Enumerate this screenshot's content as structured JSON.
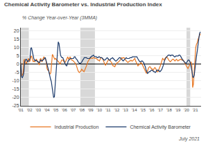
{
  "chart_data": {
    "type": "line",
    "title": "Chemical Activity Barometer vs. Industrial Production Index",
    "subtitle": "% Change Year-over-Year (3MMA)",
    "footer": "July 2021",
    "series": [
      {
        "name": "Industrial Production",
        "color": "#E87722",
        "x": [
          2001,
          2001.0883,
          2001.1767,
          2001.265,
          2001.3534,
          2001.4417,
          2001.53,
          2001.6184,
          2001.7067,
          2001.7951,
          2001.8834,
          2001.9717,
          2002.0601,
          2002.1484,
          2002.2368,
          2002.3251,
          2002.4134,
          2002.5018,
          2002.5901,
          2002.6785,
          2002.7668,
          2002.8552,
          2002.9435,
          2003.0318,
          2003.1202,
          2003.2085,
          2003.2969,
          2003.3852,
          2003.4735,
          2003.5619,
          2003.6502,
          2003.7386,
          2003.8269,
          2003.9152,
          2004.0036,
          2004.0919,
          2004.1803,
          2004.2686,
          2004.3569,
          2004.4453,
          2004.5336,
          2004.622,
          2004.7103,
          2004.7986,
          2004.887,
          2004.9753,
          2005.0637,
          2005.152,
          2005.2403,
          2005.3287,
          2005.417,
          2005.5054,
          2005.5937,
          2005.682,
          2005.7704,
          2005.8587,
          2005.9471,
          2006.0354,
          2006.1237,
          2006.2121,
          2006.3004,
          2006.3888,
          2006.4771,
          2006.5655,
          2006.6538,
          2006.7421,
          2006.8305,
          2006.9188,
          2007.0072,
          2007.0955,
          2007.1838,
          2007.2722,
          2007.3605,
          2007.4489,
          2007.5372,
          2007.6255,
          2007.7139,
          2007.8022,
          2007.8906,
          2007.9789,
          2008.0672,
          2008.1556,
          2008.2439,
          2008.3323,
          2008.4206,
          2008.5089,
          2008.5973,
          2008.6856,
          2008.774,
          2008.8623,
          2008.9506,
          2009.039,
          2009.1273,
          2009.2157,
          2009.304,
          2009.3923,
          2009.4807,
          2009.569,
          2009.6574,
          2009.7457,
          2009.834,
          2009.9224,
          2010.0107,
          2010.0991,
          2010.1874,
          2010.2758,
          2010.3641,
          2010.4524,
          2010.5408,
          2010.6291,
          2010.7175,
          2010.8058,
          2010.8941,
          2010.9825,
          2011.0708,
          2011.1592,
          2011.2475,
          2011.3358,
          2011.4242,
          2011.5125,
          2011.6009,
          2011.6892,
          2011.7775,
          2011.8659,
          2011.9542,
          2012.0426,
          2012.1309,
          2012.2192,
          2012.3076,
          2012.3959,
          2012.4843,
          2012.5726,
          2012.6609,
          2012.7493,
          2012.8376,
          2012.926,
          2013.0143,
          2013.1026,
          2013.191,
          2013.2793,
          2013.3677,
          2013.456,
          2013.5443,
          2013.6327,
          2013.721,
          2013.8094,
          2013.8977,
          2013.9861,
          2014.0744,
          2014.1627,
          2014.2511,
          2014.3394,
          2014.4278,
          2014.5161,
          2014.6044,
          2014.6928,
          2014.7811,
          2014.8695,
          2014.9578,
          2015.0461,
          2015.1345,
          2015.2228,
          2015.3112,
          2015.3995,
          2015.4878,
          2015.5762,
          2015.6645,
          2015.7529,
          2015.8412,
          2015.9295,
          2016.0179,
          2016.1062,
          2016.1946,
          2016.2829,
          2016.3712,
          2016.4596,
          2016.5479,
          2016.6363,
          2016.7246,
          2016.8129,
          2016.9013,
          2016.9896,
          2017.078,
          2017.1663,
          2017.2546,
          2017.343,
          2017.4313,
          2017.5197,
          2017.608,
          2017.6964,
          2017.7847,
          2017.873,
          2017.9614,
          2018.0497,
          2018.1381,
          2018.2264,
          2018.3147,
          2018.4031,
          2018.4914,
          2018.5798,
          2018.6681,
          2018.7564,
          2018.8448,
          2018.9331,
          2019.0215,
          2019.1098,
          2019.1981,
          2019.2865,
          2019.3748,
          2019.4632,
          2019.5515,
          2019.6398,
          2019.7282,
          2019.8165,
          2019.9049,
          2019.9932,
          2020.0815,
          2020.1699,
          2020.2582,
          2020.3466,
          2020.4349,
          2020.5232,
          2020.6116,
          2020.6999,
          2020.7883,
          2020.8766,
          2020.9649,
          2021.0533,
          2021.1416,
          2021.23,
          2021.3183,
          2021.4067,
          2021.495,
          2021.5833
        ],
        "values": [
          1.0,
          -7.0,
          -6.5,
          -5.5,
          2.5,
          3.0,
          1.5,
          0.5,
          1.5,
          2.5,
          3.5,
          1.5,
          2.0,
          4.5,
          5.0,
          3.5,
          1.5,
          2.0,
          1.5,
          2.5,
          3.0,
          2.5,
          1.5,
          0.5,
          -0.5,
          3.0,
          3.5,
          1.5,
          2.0,
          3.5,
          4.5,
          3.5,
          3.0,
          1.5,
          -2.5,
          -3.5,
          -3.5,
          -5.0,
          -6.0,
          -5.0,
          2.5,
          6.0,
          5.0,
          3.5,
          3.0,
          3.5,
          3.0,
          2.5,
          2.0,
          1.5,
          1.0,
          0.0,
          1.5,
          2.5,
          2.5,
          2.5,
          1.5,
          1.0,
          1.5,
          2.5,
          3.5,
          4.5,
          3.0,
          3.5,
          4.5,
          3.5,
          2.5,
          2.5,
          2.0,
          1.5,
          1.0,
          0.5,
          -0.5,
          -2.5,
          -3.5,
          -4.5,
          -5.0,
          -4.5,
          -4.0,
          -3.0,
          -3.5,
          -4.0,
          -4.5,
          -3.5,
          -2.5,
          -1.5,
          0.0,
          1.5,
          2.5,
          3.0,
          3.5,
          4.0,
          3.5,
          3.5,
          4.0,
          4.0,
          3.5,
          3.5,
          3.5,
          3.0,
          2.5,
          2.5,
          2.0,
          3.0,
          4.0,
          4.0,
          3.5,
          2.5,
          1.0,
          0.0,
          -0.5,
          0.5,
          1.5,
          2.0,
          3.0,
          2.5,
          2.0,
          1.5,
          1.0,
          -0.5,
          -1.0,
          -1.0,
          -1.5,
          -0.5,
          0.5,
          1.0,
          1.0,
          1.5,
          2.0,
          2.5,
          3.5,
          4.0,
          3.5,
          4.0,
          4.0,
          3.5,
          2.5,
          2.0,
          1.5,
          1.0,
          1.5,
          2.0,
          2.0,
          2.5,
          2.0,
          2.0,
          2.5,
          3.0,
          3.5,
          2.0,
          1.0,
          -0.5,
          -1.0,
          -0.5,
          0.0,
          0.5,
          1.0,
          0.5,
          -0.5,
          -1.5,
          -2.5,
          -3.5,
          -5.0,
          -5.5,
          -4.5,
          -3.0,
          -2.0,
          -1.5,
          -1.5,
          -2.5,
          -2.5,
          -3.5,
          -3.5,
          -2.5,
          -2.0,
          -2.5,
          -3.5,
          -4.5,
          -4.5,
          -3.5,
          -2.5,
          -1.0,
          0.5,
          2.0,
          3.5,
          3.0,
          2.5,
          3.5,
          4.0,
          4.5,
          4.0,
          3.5,
          2.5,
          2.0,
          1.5,
          2.0,
          2.5,
          3.0,
          3.0,
          2.5,
          2.0,
          2.5,
          3.0,
          2.5,
          2.0,
          2.5,
          2.5,
          3.0,
          3.0,
          2.5,
          2.5,
          2.5,
          1.5,
          0.5,
          -0.5,
          -1.0,
          -2.0,
          -2.5,
          -1.5,
          -0.5,
          1.0,
          1.5,
          -0.5,
          -14.0,
          -12.0,
          -5.0,
          5.0,
          10.0,
          12.0,
          13.0,
          15.0,
          16.0,
          17.5,
          18.5
        ]
      },
      {
        "name": "Chemical Activity Barometer",
        "color": "#1B3A6B",
        "x": [
          2001,
          2001.0876,
          2001.1752,
          2001.2628,
          2001.3504,
          2001.4379,
          2001.5255,
          2001.6131,
          2001.7007,
          2001.7883,
          2001.8759,
          2001.9635,
          2002.0511,
          2002.1387,
          2002.2262,
          2002.3138,
          2002.4014,
          2002.489,
          2002.5766,
          2002.6642,
          2002.7518,
          2002.8394,
          2002.927,
          2003.0145,
          2003.1021,
          2003.1897,
          2003.2773,
          2003.3649,
          2003.4525,
          2003.5401,
          2003.6277,
          2003.7152,
          2003.8028,
          2003.8904,
          2003.978,
          2004.0656,
          2004.1532,
          2004.2408,
          2004.3284,
          2004.416,
          2004.5035,
          2004.5911,
          2004.6787,
          2004.7663,
          2004.8539,
          2004.9415,
          2005.0291,
          2005.1167,
          2005.2043,
          2005.2918,
          2005.3794,
          2005.467,
          2005.5546,
          2005.6422,
          2005.7298,
          2005.8174,
          2005.905,
          2005.9926,
          2006.0801,
          2006.1677,
          2006.2553,
          2006.3429,
          2006.4305,
          2006.5181,
          2006.6057,
          2006.6933,
          2006.7809,
          2006.8684,
          2006.956,
          2007.0436,
          2007.1312,
          2007.2188,
          2007.3064,
          2007.394,
          2007.4816,
          2007.5691,
          2007.6567,
          2007.7443,
          2007.8319,
          2007.9195,
          2008.0071,
          2008.0947,
          2008.1823,
          2008.2699,
          2008.3574,
          2008.445,
          2008.5326,
          2008.6202,
          2008.7078,
          2008.7954,
          2008.883,
          2008.9706,
          2009.0582,
          2009.1457,
          2009.2333,
          2009.3209,
          2009.4085,
          2009.4961,
          2009.5837,
          2009.6713,
          2009.7589,
          2009.8465,
          2009.934,
          2010.0216,
          2010.1092,
          2010.1968,
          2010.2844,
          2010.372,
          2010.4596,
          2010.5472,
          2010.6348,
          2010.7223,
          2010.8099,
          2010.8975,
          2010.9851,
          2011.0727,
          2011.1603,
          2011.2479,
          2011.3355,
          2011.423,
          2011.5106,
          2011.5982,
          2011.6858,
          2011.7734,
          2011.861,
          2011.9486,
          2012.0362,
          2012.1238,
          2012.2113,
          2012.2989,
          2012.3865,
          2012.4741,
          2012.5617,
          2012.6493,
          2012.7369,
          2012.8245,
          2012.9121,
          2012.9996,
          2013.0872,
          2013.1748,
          2013.2624,
          2013.35,
          2013.4376,
          2013.5252,
          2013.6128,
          2013.7004,
          2013.7879,
          2013.8755,
          2013.9631,
          2014.0507,
          2014.1383,
          2014.2259,
          2014.3135,
          2014.4011,
          2014.4887,
          2014.5762,
          2014.6638,
          2014.7514,
          2014.839,
          2014.9266,
          2015.0142,
          2015.1018,
          2015.1894,
          2015.277,
          2015.3645,
          2015.4521,
          2015.5397,
          2015.6273,
          2015.7149,
          2015.8025,
          2015.8901,
          2015.9777,
          2016.0652,
          2016.1528,
          2016.2404,
          2016.328,
          2016.4156,
          2016.5032,
          2016.5908,
          2016.6784,
          2016.766,
          2016.8535,
          2016.9411,
          2017.0287,
          2017.1163,
          2017.2039,
          2017.2915,
          2017.3791,
          2017.4667,
          2017.5543,
          2017.6418,
          2017.7294,
          2017.817,
          2017.9046,
          2017.9922,
          2018.0798,
          2018.1674,
          2018.255,
          2018.3426,
          2018.4301,
          2018.5177,
          2018.6053,
          2018.6929,
          2018.7805,
          2018.8681,
          2018.9557,
          2019.0433,
          2019.1309,
          2019.2184,
          2019.306,
          2019.3936,
          2019.4812,
          2019.5688,
          2019.6564,
          2019.744,
          2019.8316,
          2019.9191,
          2020.0067,
          2020.0943,
          2020.1819,
          2020.2695,
          2020.3571,
          2020.4447,
          2020.5323,
          2020.6199,
          2020.7074,
          2020.795,
          2020.8826,
          2020.9702,
          2021.0578,
          2021.1454,
          2021.233,
          2021.3206,
          2021.4082,
          2021.4957,
          2021.5833
        ],
        "values": [
          0.5,
          -7.5,
          -8.0,
          -7.0,
          -5.0,
          1.5,
          2.5,
          3.0,
          2.5,
          1.5,
          2.0,
          2.5,
          3.5,
          9.5,
          10.0,
          8.0,
          5.0,
          3.5,
          2.5,
          2.0,
          2.5,
          2.0,
          1.5,
          1.5,
          1.0,
          1.5,
          2.5,
          2.5,
          2.0,
          2.5,
          3.0,
          3.5,
          4.0,
          2.5,
          1.0,
          -0.5,
          -3.0,
          -5.0,
          -7.5,
          -9.0,
          -10.5,
          -13.0,
          -17.0,
          -20.0,
          -19.5,
          -12.5,
          -6.0,
          1.5,
          6.5,
          13.5,
          12.5,
          8.0,
          5.5,
          4.5,
          4.0,
          4.0,
          2.5,
          1.5,
          0.5,
          -0.5,
          -1.0,
          0.0,
          2.0,
          2.5,
          3.0,
          3.5,
          3.5,
          3.5,
          3.5,
          3.5,
          4.5,
          4.5,
          3.5,
          3.0,
          2.5,
          1.5,
          1.0,
          0.5,
          0.5,
          1.0,
          1.5,
          2.5,
          3.0,
          4.0,
          4.0,
          4.0,
          4.0,
          3.5,
          3.5,
          3.5,
          3.5,
          4.0,
          4.5,
          5.0,
          5.0,
          5.5,
          5.0,
          4.5,
          4.5,
          4.5,
          4.0,
          4.0,
          4.5,
          4.5,
          4.0,
          4.0,
          4.0,
          3.5,
          3.0,
          2.5,
          2.5,
          3.0,
          3.5,
          4.0,
          3.5,
          3.0,
          2.5,
          2.5,
          3.5,
          3.5,
          4.0,
          3.5,
          3.0,
          2.5,
          2.0,
          2.0,
          2.5,
          3.0,
          3.5,
          4.0,
          4.0,
          3.5,
          3.0,
          2.5,
          2.0,
          2.5,
          3.0,
          3.5,
          4.0,
          3.5,
          3.5,
          3.5,
          3.5,
          4.0,
          4.0,
          4.0,
          4.5,
          4.5,
          4.5,
          4.5,
          4.5,
          4.5,
          4.5,
          3.5,
          2.5,
          2.0,
          1.5,
          1.5,
          2.0,
          2.0,
          1.5,
          1.0,
          -0.5,
          -1.5,
          -3.5,
          -5.0,
          -5.5,
          -5.0,
          -4.5,
          -4.5,
          -4.0,
          -3.5,
          -3.5,
          -4.0,
          -4.5,
          -4.5,
          -5.0,
          -4.5,
          -3.5,
          -3.5,
          -3.5,
          -4.0,
          -4.5,
          -4.0,
          -3.5,
          -2.5,
          -1.5,
          0.0,
          2.0,
          3.5,
          4.0,
          4.5,
          5.0,
          5.5,
          5.5,
          5.5,
          5.0,
          5.5,
          5.5,
          5.5,
          5.0,
          4.5,
          4.5,
          5.0,
          5.0,
          5.0,
          5.0,
          5.5,
          5.5,
          5.0,
          4.0,
          3.0,
          2.5,
          2.0,
          1.5,
          1.0,
          0.5,
          1.0,
          2.0,
          2.5,
          2.5,
          2.0,
          0.5,
          -1.5,
          -4.0,
          -7.5,
          -8.0,
          -6.5,
          -2.0,
          2.0,
          5.0,
          8.0,
          13.0,
          15.5,
          18.5,
          19.5
        ]
      }
    ],
    "xlim": [
      2001.0,
      2021.666667
    ],
    "xticks": [
      {
        "value": 2001,
        "label": "'01"
      },
      {
        "value": 2002,
        "label": "'02"
      },
      {
        "value": 2003,
        "label": "'03"
      },
      {
        "value": 2004,
        "label": "'04"
      },
      {
        "value": 2005,
        "label": "'05"
      },
      {
        "value": 2006,
        "label": "'06"
      },
      {
        "value": 2007,
        "label": "'07"
      },
      {
        "value": 2008,
        "label": "'08"
      },
      {
        "value": 2009,
        "label": "'09"
      },
      {
        "value": 2010,
        "label": "'10"
      },
      {
        "value": 2011,
        "label": "'11"
      },
      {
        "value": 2012,
        "label": "'12"
      },
      {
        "value": 2013,
        "label": "'13"
      },
      {
        "value": 2014,
        "label": "'14"
      },
      {
        "value": 2015,
        "label": "'15"
      },
      {
        "value": 2016,
        "label": "'16"
      },
      {
        "value": 2017,
        "label": "'17"
      },
      {
        "value": 2018,
        "label": "'18"
      },
      {
        "value": 2019,
        "label": "'19"
      },
      {
        "value": 2020,
        "label": "'20"
      },
      {
        "value": 2021,
        "label": "'21"
      }
    ],
    "ylim": [
      -25,
      22
    ],
    "yticks": [
      -25,
      -20,
      -15,
      -10,
      -5,
      0,
      5,
      10,
      15,
      20
    ],
    "grid": "y",
    "legend": "bottom",
    "shaded_ranges": [
      [
        2001.0,
        2001.92
      ],
      [
        2007.83,
        2009.5
      ],
      [
        2020.0,
        2020.42
      ]
    ],
    "shaded_color": "#c8c8c8"
  }
}
